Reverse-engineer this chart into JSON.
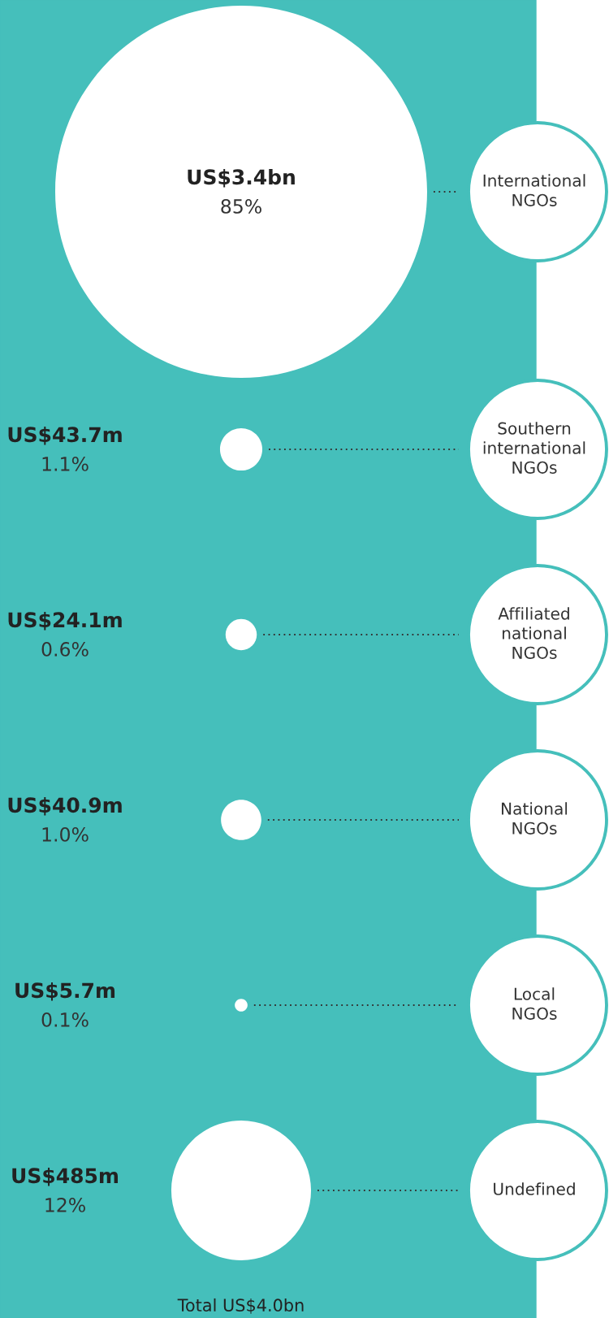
{
  "chart_data": {
    "type": "other",
    "categories": [
      "International NGOs",
      "Southern international NGOs",
      "Affiliated national NGOs",
      "National NGOs",
      "Local NGOs",
      "Undefined"
    ],
    "values": [
      85,
      1.1,
      0.6,
      1.0,
      0.1,
      12
    ],
    "value_labels": [
      "85%",
      "1.1%",
      "0.6%",
      "1.0%",
      "0.1%",
      "12%"
    ],
    "color": "#ffffff",
    "legend": false,
    "annotations": [
      {
        "text": "US$3.4bn",
        "x": "International NGOs"
      },
      {
        "text": "US$43.7m",
        "x": "Southern international NGOs"
      },
      {
        "text": "US$24.1m",
        "x": "Affiliated national NGOs"
      },
      {
        "text": "US$40.9m",
        "x": "National NGOs"
      },
      {
        "text": "US$5.7m",
        "x": "Local NGOs"
      },
      {
        "text": "US$485m",
        "x": "Undefined"
      },
      "Total US$4.0bn"
    ]
  }
}
